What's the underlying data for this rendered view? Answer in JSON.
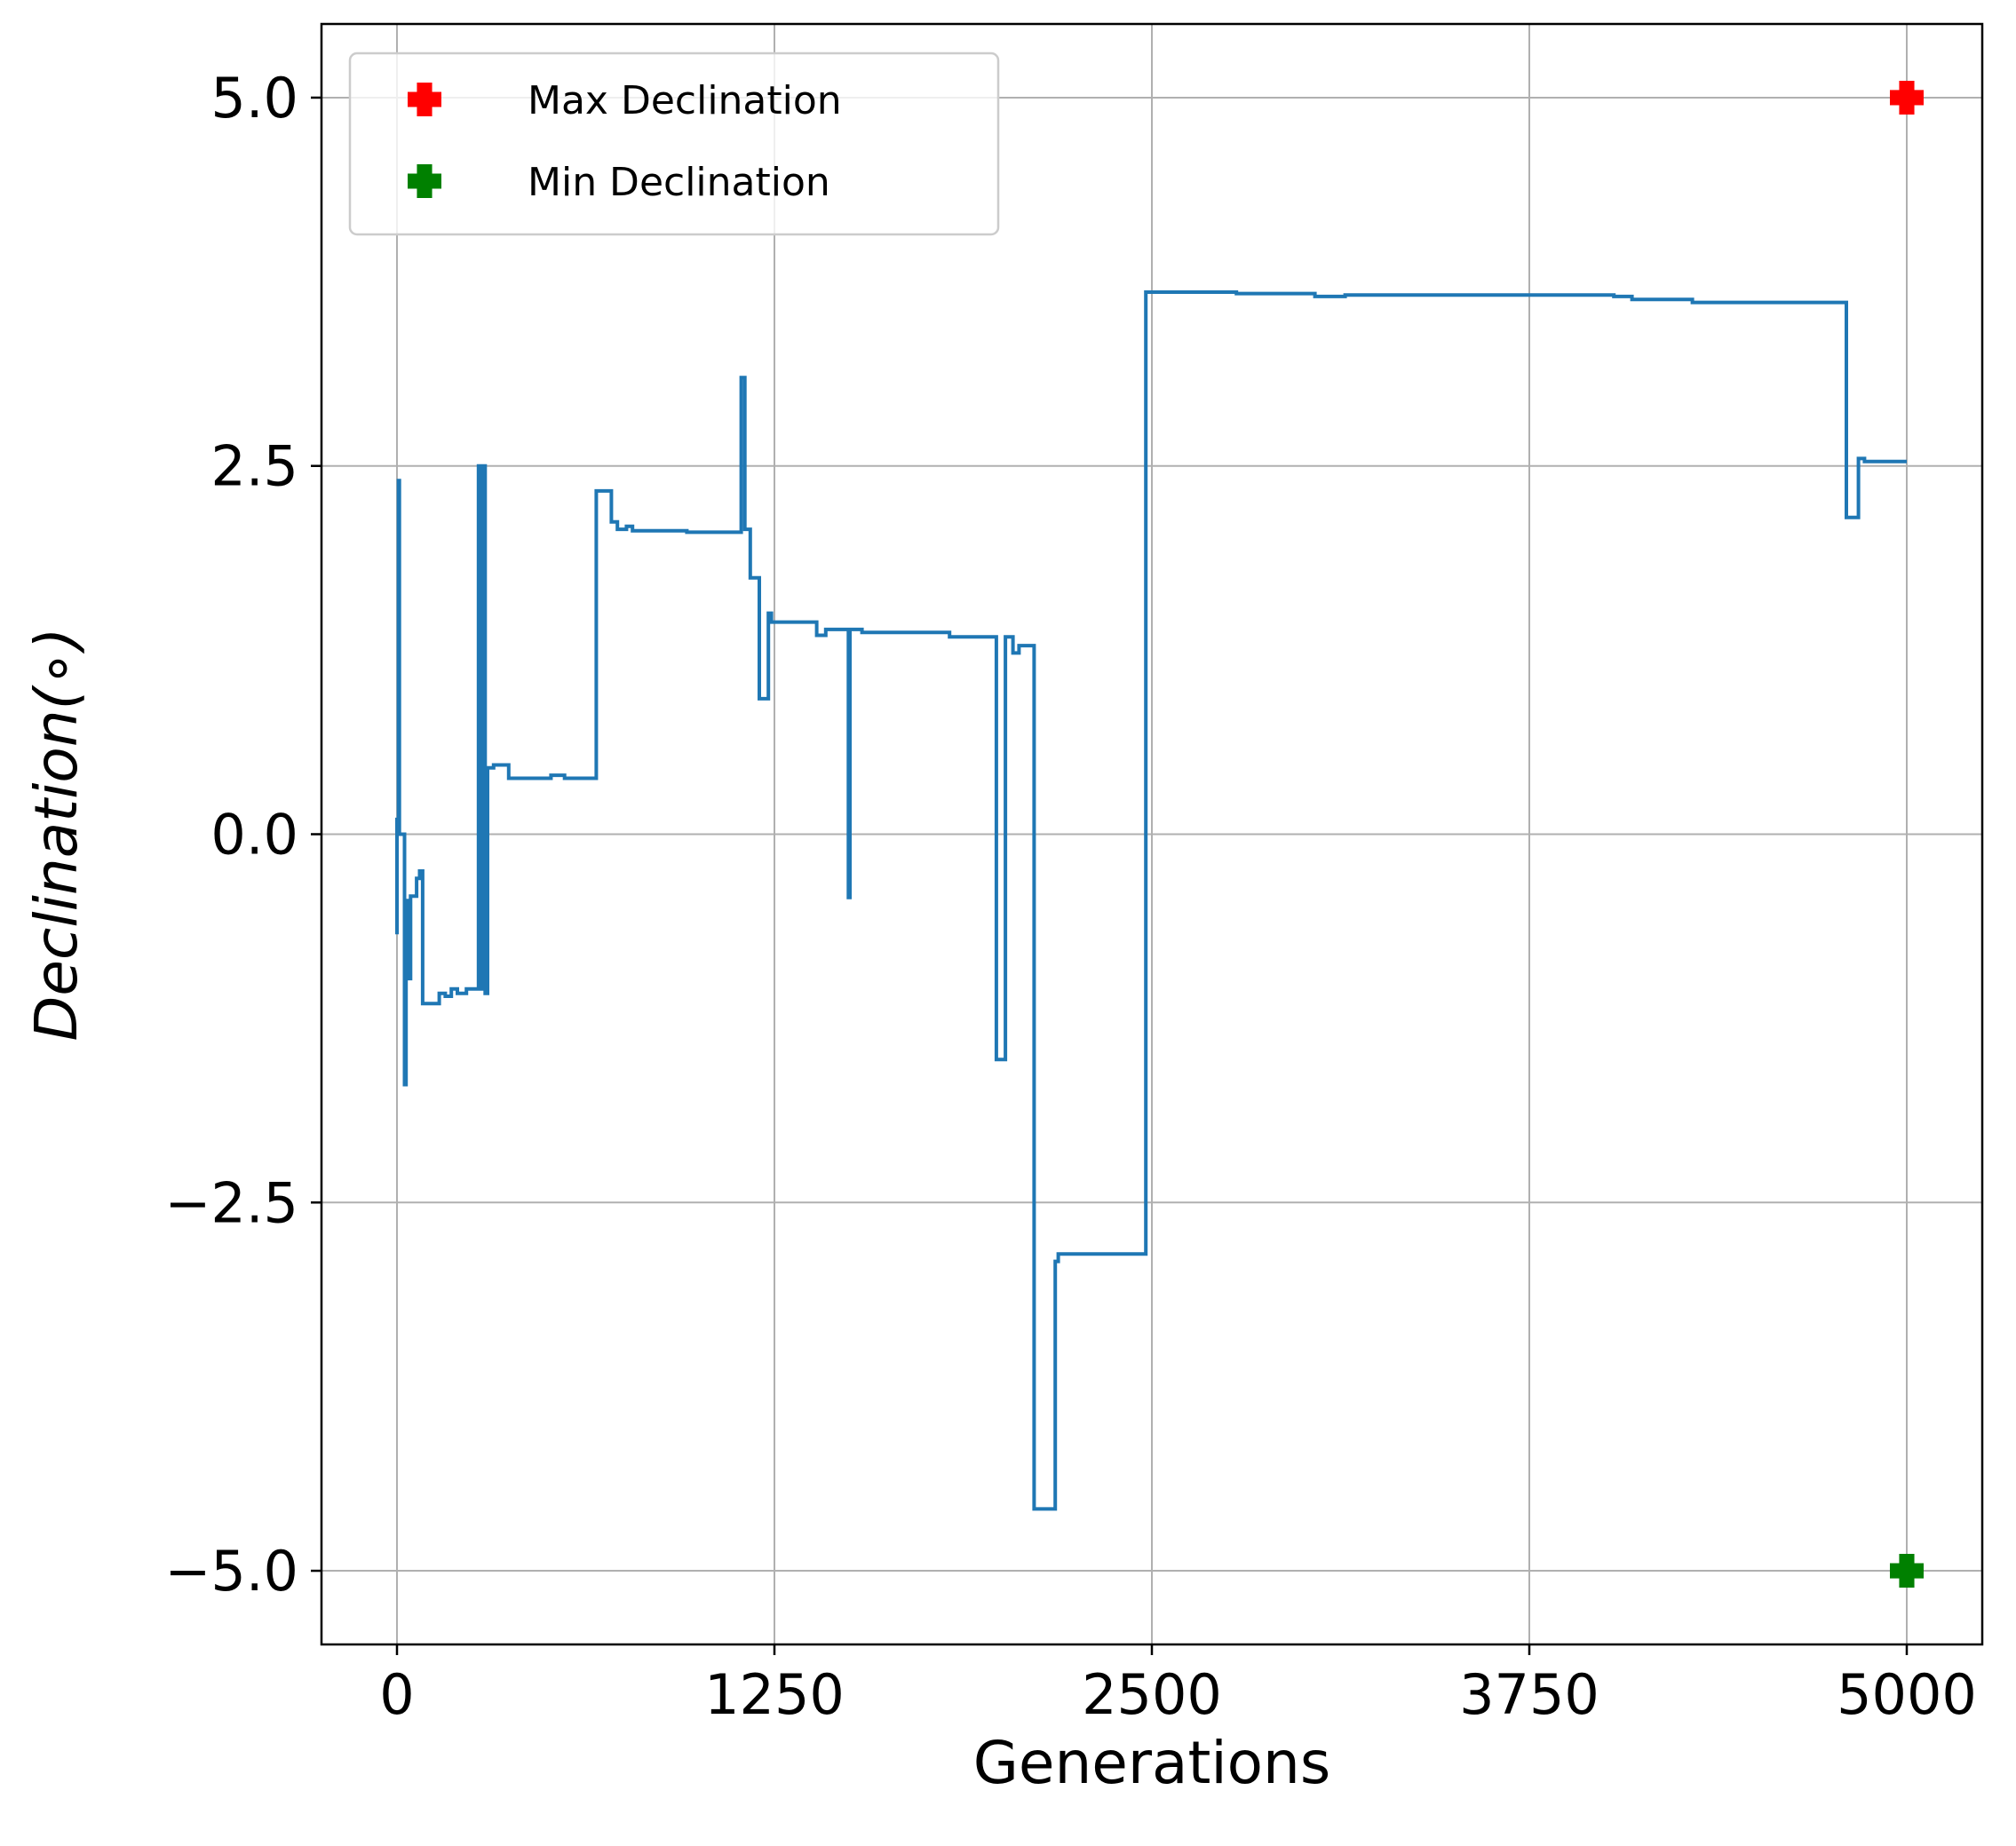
{
  "chart_data": {
    "type": "line",
    "xlabel": "Generations",
    "ylabel": "Declination(∘)",
    "xlim": [
      -250,
      5250
    ],
    "ylim": [
      -5.5,
      5.5
    ],
    "x_ticks": [
      0,
      1250,
      2500,
      3750,
      5000
    ],
    "x_tick_labels": [
      "0",
      "1250",
      "2500",
      "3750",
      "5000"
    ],
    "y_ticks": [
      -5.0,
      -2.5,
      0.0,
      2.5,
      5.0
    ],
    "y_tick_labels": [
      "−5.0",
      "−2.5",
      "0.0",
      "2.5",
      "5.0"
    ],
    "grid": true,
    "legend_position": "top-left",
    "series": [
      {
        "type": "line",
        "color": "#1f77b4",
        "points": [
          [
            0,
            -0.68
          ],
          [
            0,
            0.1
          ],
          [
            5,
            0.1
          ],
          [
            5,
            2.4
          ],
          [
            8,
            2.4
          ],
          [
            8,
            0.0
          ],
          [
            25,
            0.0
          ],
          [
            25,
            -1.7
          ],
          [
            30,
            -1.7
          ],
          [
            30,
            -0.45
          ],
          [
            40,
            -0.45
          ],
          [
            40,
            -0.98
          ],
          [
            45,
            -0.98
          ],
          [
            45,
            -0.42
          ],
          [
            65,
            -0.42
          ],
          [
            65,
            -0.3
          ],
          [
            75,
            -0.3
          ],
          [
            75,
            -0.25
          ],
          [
            85,
            -0.25
          ],
          [
            85,
            -1.15
          ],
          [
            140,
            -1.15
          ],
          [
            140,
            -1.08
          ],
          [
            160,
            -1.08
          ],
          [
            160,
            -1.1
          ],
          [
            180,
            -1.1
          ],
          [
            180,
            -1.05
          ],
          [
            200,
            -1.05
          ],
          [
            200,
            -1.08
          ],
          [
            230,
            -1.08
          ],
          [
            230,
            -1.05
          ],
          [
            270,
            -1.05
          ],
          [
            270,
            2.5
          ],
          [
            278,
            2.5
          ],
          [
            278,
            -1.05
          ],
          [
            285,
            -1.05
          ],
          [
            285,
            2.5
          ],
          [
            292,
            2.5
          ],
          [
            292,
            -1.08
          ],
          [
            300,
            -1.08
          ],
          [
            300,
            0.45
          ],
          [
            320,
            0.45
          ],
          [
            320,
            0.47
          ],
          [
            370,
            0.47
          ],
          [
            370,
            0.38
          ],
          [
            510,
            0.38
          ],
          [
            510,
            0.4
          ],
          [
            555,
            0.4
          ],
          [
            555,
            0.38
          ],
          [
            660,
            0.38
          ],
          [
            660,
            2.33
          ],
          [
            710,
            2.33
          ],
          [
            710,
            2.12
          ],
          [
            730,
            2.12
          ],
          [
            730,
            2.07
          ],
          [
            760,
            2.07
          ],
          [
            760,
            2.09
          ],
          [
            780,
            2.09
          ],
          [
            780,
            2.06
          ],
          [
            960,
            2.06
          ],
          [
            960,
            2.05
          ],
          [
            1140,
            2.05
          ],
          [
            1140,
            3.1
          ],
          [
            1152,
            3.1
          ],
          [
            1152,
            2.07
          ],
          [
            1170,
            2.07
          ],
          [
            1170,
            1.74
          ],
          [
            1200,
            1.74
          ],
          [
            1200,
            0.92
          ],
          [
            1230,
            0.92
          ],
          [
            1230,
            1.5
          ],
          [
            1240,
            1.5
          ],
          [
            1240,
            1.44
          ],
          [
            1390,
            1.44
          ],
          [
            1390,
            1.35
          ],
          [
            1420,
            1.35
          ],
          [
            1420,
            1.39
          ],
          [
            1495,
            1.39
          ],
          [
            1495,
            -0.43
          ],
          [
            1500,
            -0.43
          ],
          [
            1500,
            1.39
          ],
          [
            1540,
            1.39
          ],
          [
            1540,
            1.37
          ],
          [
            1830,
            1.37
          ],
          [
            1830,
            1.34
          ],
          [
            1985,
            1.34
          ],
          [
            1985,
            -1.53
          ],
          [
            2015,
            -1.53
          ],
          [
            2015,
            1.34
          ],
          [
            2040,
            1.34
          ],
          [
            2040,
            1.23
          ],
          [
            2060,
            1.23
          ],
          [
            2060,
            1.28
          ],
          [
            2110,
            1.28
          ],
          [
            2110,
            -4.58
          ],
          [
            2180,
            -4.58
          ],
          [
            2180,
            -2.9
          ],
          [
            2190,
            -2.9
          ],
          [
            2190,
            -2.85
          ],
          [
            2480,
            -2.85
          ],
          [
            2480,
            3.68
          ],
          [
            2780,
            3.68
          ],
          [
            2780,
            3.67
          ],
          [
            3040,
            3.67
          ],
          [
            3040,
            3.65
          ],
          [
            3140,
            3.65
          ],
          [
            3140,
            3.66
          ],
          [
            4030,
            3.66
          ],
          [
            4030,
            3.65
          ],
          [
            4090,
            3.65
          ],
          [
            4090,
            3.63
          ],
          [
            4290,
            3.63
          ],
          [
            4290,
            3.61
          ],
          [
            4800,
            3.61
          ],
          [
            4800,
            2.15
          ],
          [
            4840,
            2.15
          ],
          [
            4840,
            2.55
          ],
          [
            4860,
            2.55
          ],
          [
            4860,
            2.53
          ],
          [
            5000,
            2.53
          ]
        ]
      },
      {
        "name": "Max Declination",
        "type": "scatter",
        "color": "#ff0000",
        "marker": "plus-filled",
        "points": [
          [
            5000,
            5.0
          ]
        ]
      },
      {
        "name": "Min Declination",
        "type": "scatter",
        "color": "#008000",
        "marker": "plus-filled",
        "points": [
          [
            5000,
            -5.0
          ]
        ]
      }
    ]
  }
}
